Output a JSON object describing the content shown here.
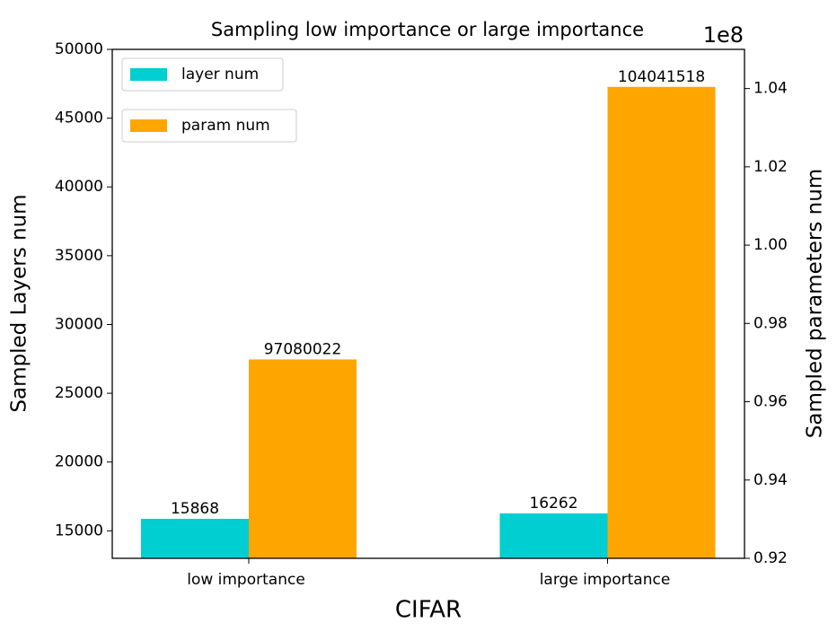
{
  "chart_data": {
    "type": "bar",
    "title": "Sampling low importance or large importance",
    "xlabel": "CIFAR",
    "ylabel": "Sampled Layers num",
    "y2label": "Sampled parameters num",
    "y2_offset_label": "1e8",
    "categories": [
      "low importance",
      "large importance"
    ],
    "series": [
      {
        "name": "layer num",
        "color": "#00ced1",
        "values": [
          15868,
          16262
        ]
      },
      {
        "name": "param num",
        "color": "#ffa500",
        "axis": "y2",
        "values": [
          97080022,
          104041518
        ]
      }
    ],
    "ylim": [
      13000,
      50000
    ],
    "yticks": [
      15000,
      20000,
      25000,
      30000,
      35000,
      40000,
      45000,
      50000
    ],
    "y2lim": [
      92000000,
      105000000
    ],
    "y2ticks": [
      {
        "value": 92000000,
        "label": "0.92"
      },
      {
        "value": 94000000,
        "label": "0.94"
      },
      {
        "value": 96000000,
        "label": "0.96"
      },
      {
        "value": 98000000,
        "label": "0.98"
      },
      {
        "value": 100000000,
        "label": "1.00"
      },
      {
        "value": 102000000,
        "label": "1.02"
      },
      {
        "value": 104000000,
        "label": "1.04"
      }
    ],
    "grid": false
  }
}
